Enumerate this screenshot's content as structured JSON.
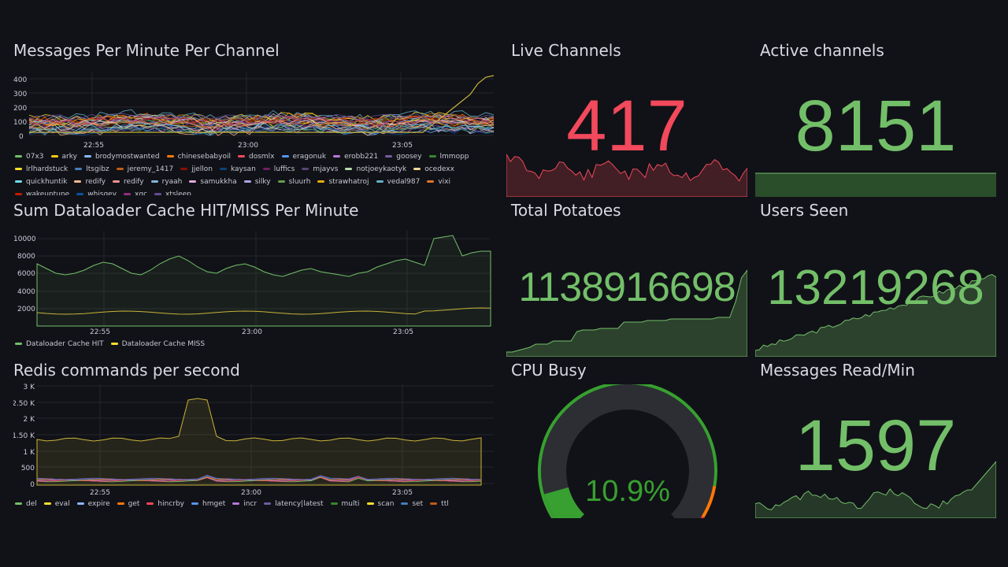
{
  "dashboard": {
    "messages_per_minute": {
      "title": "Messages Per Minute Per Channel",
      "y_ticks": [
        "400",
        "300",
        "200",
        "100",
        "0"
      ],
      "x_ticks": [
        "22:55",
        "23:00",
        "23:05"
      ],
      "legend": [
        {
          "name": "07x3",
          "color": "#73bf69"
        },
        {
          "name": "arky",
          "color": "#f2cc0c"
        },
        {
          "name": "brodymostwanted",
          "color": "#8ab8ff"
        },
        {
          "name": "chinesebabyoil",
          "color": "#ff780a"
        },
        {
          "name": "dosmlx",
          "color": "#f2495c"
        },
        {
          "name": "eragonuk",
          "color": "#5794f2"
        },
        {
          "name": "erobb221",
          "color": "#b877d9"
        },
        {
          "name": "goosey",
          "color": "#705da0"
        },
        {
          "name": "lmmopp",
          "color": "#37872d"
        },
        {
          "name": "lrlhardstuck",
          "color": "#fade2a"
        },
        {
          "name": "ltsgibz",
          "color": "#447ebc"
        },
        {
          "name": "jeremy_1417",
          "color": "#c15c17"
        },
        {
          "name": "jjellon",
          "color": "#890f02"
        },
        {
          "name": "kaysan",
          "color": "#0a437c"
        },
        {
          "name": "luffics",
          "color": "#6d1f62"
        },
        {
          "name": "mjayvs",
          "color": "#584477"
        },
        {
          "name": "notjoeykaotyk",
          "color": "#b7dbab"
        },
        {
          "name": "ocedexx",
          "color": "#f4d598"
        },
        {
          "name": "quickhuntik",
          "color": "#70dbed"
        },
        {
          "name": "redify",
          "color": "#f9ba8f"
        },
        {
          "name": "redify",
          "color": "#f29191"
        },
        {
          "name": "ryaah",
          "color": "#82b5d8"
        },
        {
          "name": "samukkha",
          "color": "#e5a8e2"
        },
        {
          "name": "silky",
          "color": "#aea2e0"
        },
        {
          "name": "sluurh",
          "color": "#629e51"
        },
        {
          "name": "strawhatroj",
          "color": "#e5ac0e"
        },
        {
          "name": "vedal987",
          "color": "#64b0c8"
        },
        {
          "name": "vixi",
          "color": "#e0752d"
        },
        {
          "name": "wakeuptune",
          "color": "#bf1b00"
        },
        {
          "name": "whisqey",
          "color": "#0a50a1"
        },
        {
          "name": "xqc",
          "color": "#962d82"
        },
        {
          "name": "xtsleep",
          "color": "#614d93"
        }
      ]
    },
    "dataloader": {
      "title": "Sum Dataloader Cache HIT/MISS Per Minute",
      "y_ticks": [
        "10000",
        "8000",
        "6000",
        "4000",
        "2000"
      ],
      "x_ticks": [
        "22:55",
        "23:00",
        "23:05"
      ],
      "legend": [
        {
          "name": "Dataloader Cache HIT",
          "color": "#73bf69"
        },
        {
          "name": "Dataloader Cache MISS",
          "color": "#fade2a"
        }
      ]
    },
    "redis": {
      "title": "Redis commands per second",
      "y_ticks": [
        "3 K",
        "2.50 K",
        "2 K",
        "1.50 K",
        "1 K",
        "500",
        "0"
      ],
      "x_ticks": [
        "22:55",
        "23:00",
        "23:05"
      ],
      "legend": [
        {
          "name": "del",
          "color": "#73bf69"
        },
        {
          "name": "eval",
          "color": "#fade2a"
        },
        {
          "name": "expire",
          "color": "#8ab8ff"
        },
        {
          "name": "get",
          "color": "#ff780a"
        },
        {
          "name": "hincrby",
          "color": "#f2495c"
        },
        {
          "name": "hmget",
          "color": "#5794f2"
        },
        {
          "name": "incr",
          "color": "#b877d9"
        },
        {
          "name": "latency|latest",
          "color": "#705da0"
        },
        {
          "name": "multi",
          "color": "#37872d"
        },
        {
          "name": "scan",
          "color": "#fade2a"
        },
        {
          "name": "set",
          "color": "#447ebc"
        },
        {
          "name": "ttl",
          "color": "#c15c17"
        }
      ]
    },
    "live_channels": {
      "title": "Live Channels",
      "value": "417",
      "color": "#f2495c"
    },
    "active_channels": {
      "title": "Active channels",
      "value": "8151",
      "color": "#73bf69"
    },
    "total_potatoes": {
      "title": "Total Potatoes",
      "value": "1138916698",
      "color": "#73bf69"
    },
    "users_seen": {
      "title": "Users Seen",
      "value": "13219268",
      "color": "#73bf69"
    },
    "cpu_busy": {
      "title": "CPU Busy",
      "value": "10.9%",
      "fraction": 0.109,
      "color": "#37a030"
    },
    "messages_read": {
      "title": "Messages Read/Min",
      "value": "1597",
      "color": "#73bf69"
    }
  }
}
